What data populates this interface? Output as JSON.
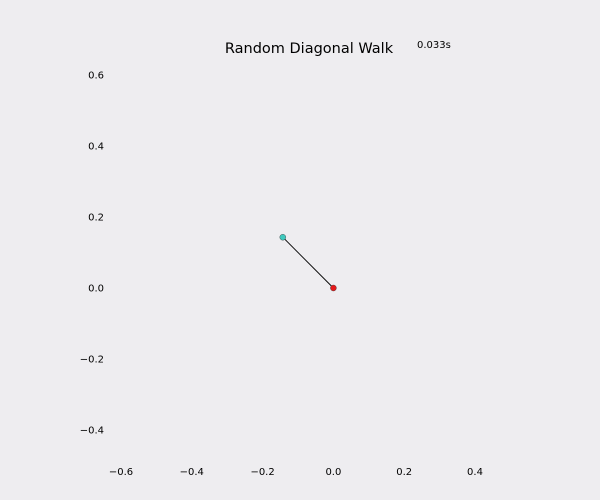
{
  "chart_data": {
    "type": "line",
    "title": "Random Diagonal Walk",
    "annotation": "0.033s",
    "xlabel": "",
    "ylabel": "",
    "xlim": [
      -0.6,
      0.4
    ],
    "ylim": [
      -0.4,
      0.6
    ],
    "xticks": [
      -0.6,
      -0.4,
      -0.2,
      0.0,
      0.2,
      0.4
    ],
    "xtick_labels": [
      "−0.6",
      "−0.4",
      "−0.2",
      "0.0",
      "0.2",
      "0.4"
    ],
    "yticks": [
      -0.4,
      -0.2,
      0.0,
      0.2,
      0.4,
      0.6
    ],
    "ytick_labels": [
      "−0.4",
      "−0.2",
      "0.0",
      "0.2",
      "0.4",
      "0.6"
    ],
    "grid": false,
    "series": [
      {
        "x": [
          0.0,
          -0.143
        ],
        "y": [
          0.0,
          0.143
        ],
        "color": "#000000"
      }
    ],
    "markers": [
      {
        "x": 0.0,
        "y": 0.0,
        "color": "#e41a1c"
      },
      {
        "x": -0.143,
        "y": 0.143,
        "color": "#3fc9be"
      }
    ]
  },
  "colors": {
    "background": "#eeedf0",
    "line": "#000000"
  }
}
